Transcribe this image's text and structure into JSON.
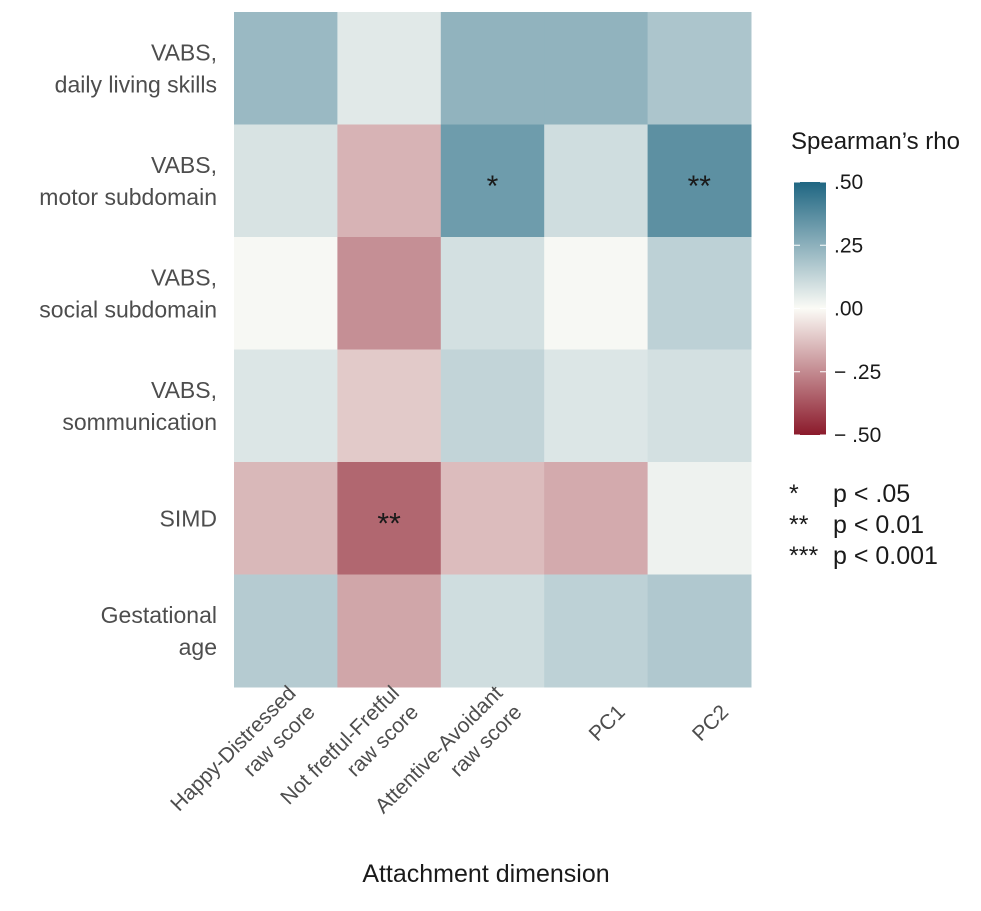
{
  "chart_data": {
    "type": "heatmap",
    "xlabel": "Attachment dimension",
    "columns": [
      [
        "Happy-Distressed",
        "raw score"
      ],
      [
        "Not fretful-Fretful",
        "raw score"
      ],
      [
        "Attentive-Avoidant",
        "raw score"
      ],
      [
        "PC1"
      ],
      [
        "PC2"
      ]
    ],
    "rows": [
      [
        "VABS,",
        "daily living skills"
      ],
      [
        "VABS,",
        "motor subdomain"
      ],
      [
        "VABS,",
        "social subdomain"
      ],
      [
        "VABS,",
        "sommunication"
      ],
      [
        "SIMD"
      ],
      [
        "Gestational",
        "age"
      ]
    ],
    "values": [
      [
        0.22,
        0.06,
        0.24,
        0.24,
        0.18
      ],
      [
        0.08,
        -0.16,
        0.32,
        0.1,
        0.36
      ],
      [
        0.01,
        -0.24,
        0.09,
        0.01,
        0.14
      ],
      [
        0.07,
        -0.11,
        0.13,
        0.07,
        0.09
      ],
      [
        -0.15,
        -0.33,
        -0.14,
        -0.18,
        0.03
      ],
      [
        0.16,
        -0.19,
        0.1,
        0.14,
        0.17
      ]
    ],
    "significance": [
      [
        "",
        "",
        "",
        "",
        ""
      ],
      [
        "",
        "",
        "*",
        "",
        "**"
      ],
      [
        "",
        "",
        "",
        "",
        ""
      ],
      [
        "",
        "",
        "",
        "",
        ""
      ],
      [
        "",
        "**",
        "",
        "",
        ""
      ],
      [
        "",
        "",
        "",
        "",
        ""
      ]
    ],
    "legend": {
      "title": "Spearman’s rho",
      "range": [
        -0.5,
        0.5
      ],
      "ticks": [
        {
          "value": 0.5,
          "label": ".50"
        },
        {
          "value": 0.25,
          "label": ".25"
        },
        {
          "value": 0.0,
          "label": ".00"
        },
        {
          "value": -0.25,
          "label": "− .25"
        },
        {
          "value": -0.5,
          "label": "− .50"
        }
      ],
      "colors": {
        "low": "#8b1a2b",
        "mid": "#fbfbf6",
        "high": "#1f6682"
      }
    },
    "sig_legend": [
      {
        "symbol": "*",
        "text": "p < .05"
      },
      {
        "symbol": "**",
        "text": "p < 0.01"
      },
      {
        "symbol": "***",
        "text": "p < 0.001"
      }
    ]
  }
}
